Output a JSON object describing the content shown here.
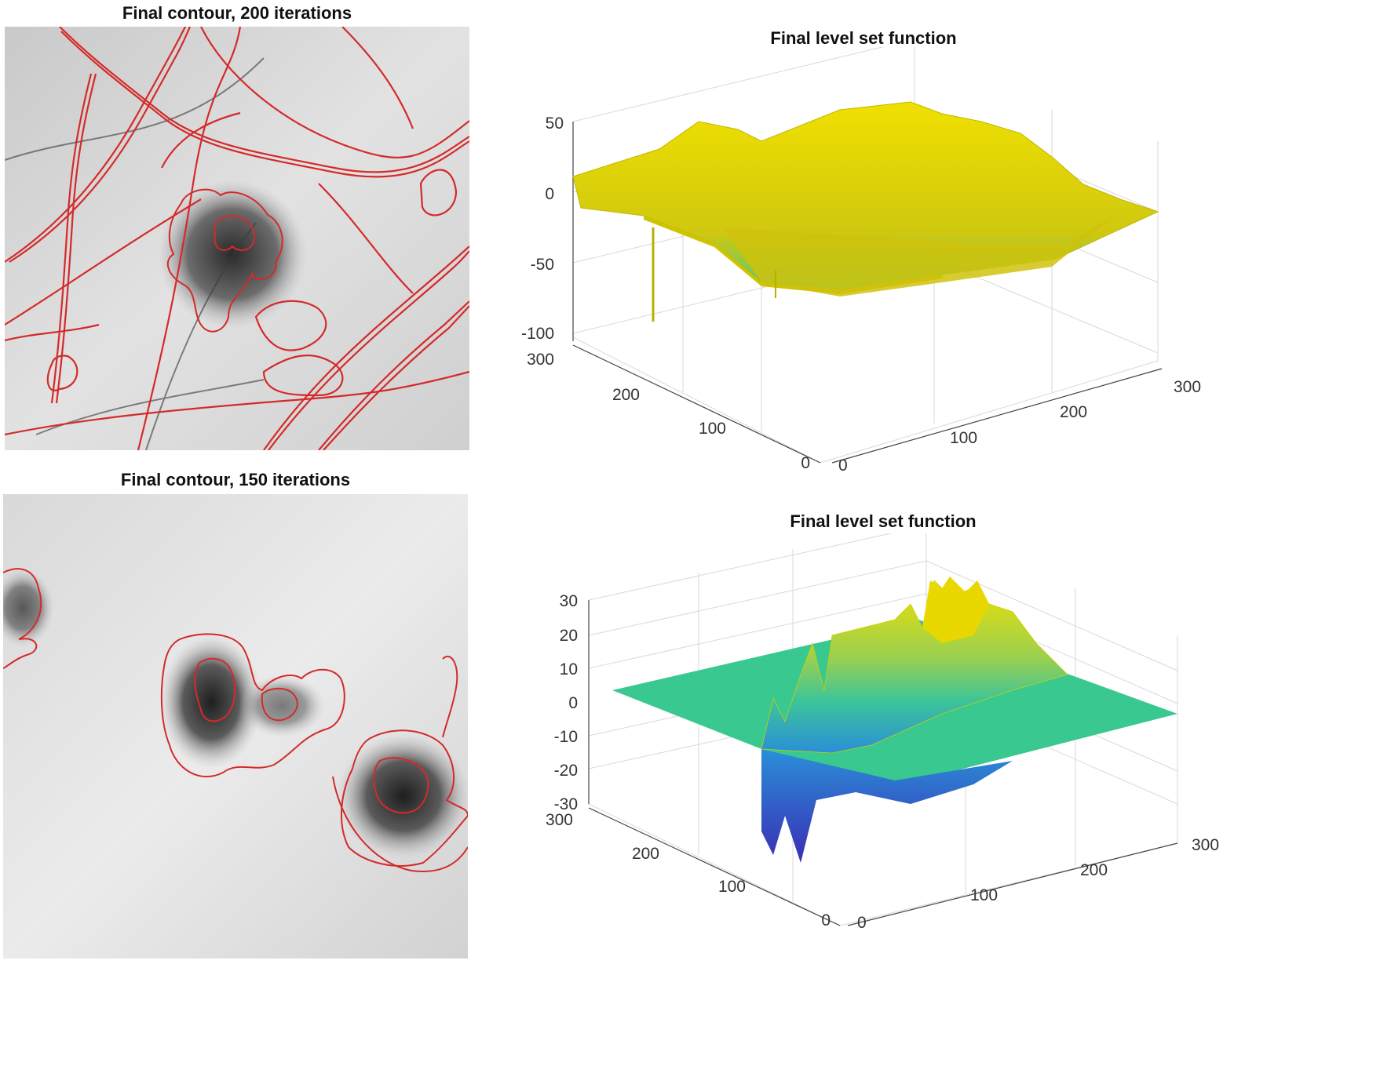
{
  "figure": {
    "top_left": {
      "title": "Final contour, 200 iterations"
    },
    "bottom_left": {
      "title": "Final contour, 150 iterations"
    },
    "top_right": {
      "title": "Final level set function",
      "z_ticks": [
        "50",
        "0",
        "-50",
        "-100"
      ],
      "y_ticks": [
        "300",
        "200",
        "100",
        "0"
      ],
      "x_ticks": [
        "0",
        "100",
        "200",
        "300"
      ]
    },
    "bottom_right": {
      "title": "Final level set function",
      "z_ticks": [
        "30",
        "20",
        "10",
        "0",
        "-10",
        "-20",
        "-30"
      ],
      "y_ticks": [
        "300",
        "200",
        "100",
        "0"
      ],
      "x_ticks": [
        "0",
        "100",
        "200",
        "300"
      ]
    }
  },
  "chart_data": [
    {
      "type": "surface",
      "title": "Final level set function",
      "zlim": [
        -100,
        50
      ],
      "xlim": [
        0,
        300
      ],
      "ylim": [
        0,
        300
      ],
      "grid": true,
      "colormap": [
        "#e8d800",
        "#c8c810",
        "#4cc87a"
      ]
    },
    {
      "type": "surface",
      "title": "Final level set function",
      "zlim": [
        -30,
        30
      ],
      "xlim": [
        0,
        300
      ],
      "ylim": [
        0,
        300
      ],
      "grid": true,
      "colormap": [
        "#3a2db5",
        "#2a8fd8",
        "#3cc49a",
        "#e8d800"
      ]
    }
  ],
  "colors": {
    "contour": "#d42a2a",
    "surface_flat_top": "#d8c800",
    "surface_flat_bottom": "#38c890"
  }
}
